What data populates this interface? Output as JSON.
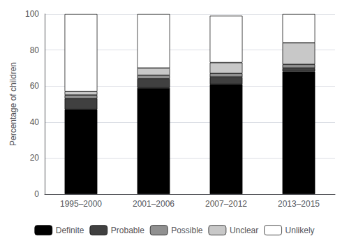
{
  "chart_data": {
    "type": "bar",
    "stacked": true,
    "categories": [
      "1995–2000",
      "2001–2006",
      "2007–2012",
      "2013–2015"
    ],
    "series": [
      {
        "name": "Definite",
        "color": "#000000",
        "values": [
          47,
          59,
          61,
          68
        ]
      },
      {
        "name": "Probable",
        "color": "#404040",
        "values": [
          6,
          5,
          4,
          2
        ]
      },
      {
        "name": "Possible",
        "color": "#909090",
        "values": [
          2,
          2,
          2,
          2
        ]
      },
      {
        "name": "Unclear",
        "color": "#c8c8c8",
        "values": [
          2,
          4,
          6,
          12
        ]
      },
      {
        "name": "Unlikely",
        "color": "#ffffff",
        "values": [
          43,
          30,
          26,
          16
        ]
      }
    ],
    "ylabel": "Percentage of children",
    "ylim": [
      0,
      100
    ],
    "yticks": [
      0,
      20,
      40,
      60,
      80,
      100
    ],
    "grid": true,
    "legend": "bottom"
  }
}
